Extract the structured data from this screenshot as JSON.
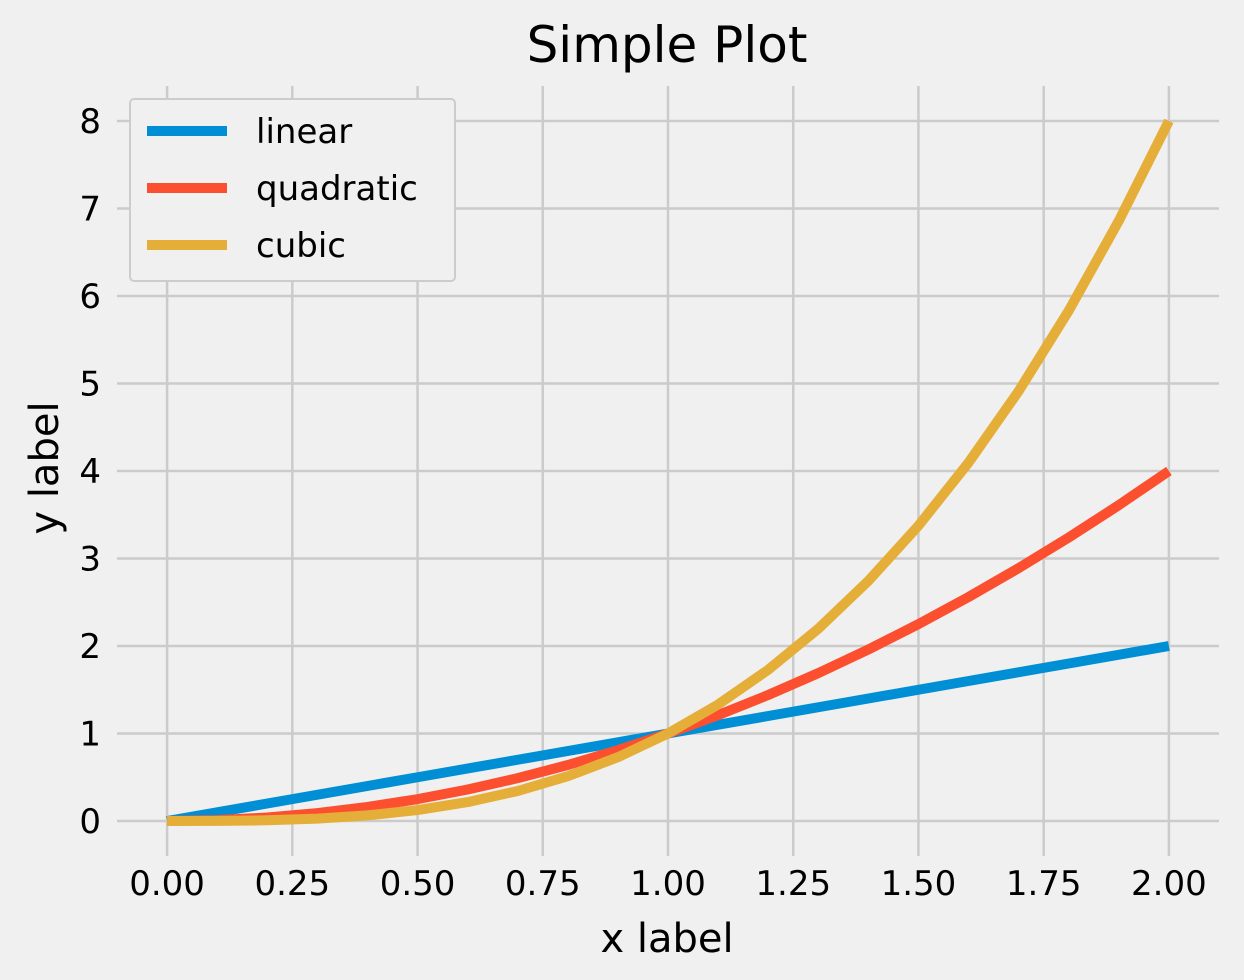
{
  "chart_data": {
    "type": "line",
    "title": "Simple Plot",
    "xlabel": "x label",
    "ylabel": "y label",
    "xlim": [
      -0.1,
      2.1
    ],
    "ylim": [
      -0.4,
      8.4
    ],
    "xticks": [
      0.0,
      0.25,
      0.5,
      0.75,
      1.0,
      1.25,
      1.5,
      1.75,
      2.0
    ],
    "xtick_labels": [
      "0.00",
      "0.25",
      "0.50",
      "0.75",
      "1.00",
      "1.25",
      "1.50",
      "1.75",
      "2.00"
    ],
    "yticks": [
      0,
      1,
      2,
      3,
      4,
      5,
      6,
      7,
      8
    ],
    "ytick_labels": [
      "0",
      "1",
      "2",
      "3",
      "4",
      "5",
      "6",
      "7",
      "8"
    ],
    "grid": true,
    "legend_position": "top-left",
    "x": [
      0.0,
      0.1,
      0.2,
      0.3,
      0.4,
      0.5,
      0.6,
      0.7,
      0.8,
      0.9,
      1.0,
      1.1,
      1.2,
      1.3,
      1.4,
      1.5,
      1.6,
      1.7,
      1.8,
      1.9,
      2.0
    ],
    "series": [
      {
        "name": "linear",
        "color": "#008fd5",
        "values": [
          0.0,
          0.1,
          0.2,
          0.3,
          0.4,
          0.5,
          0.6,
          0.7,
          0.8,
          0.9,
          1.0,
          1.1,
          1.2,
          1.3,
          1.4,
          1.5,
          1.6,
          1.7,
          1.8,
          1.9,
          2.0
        ]
      },
      {
        "name": "quadratic",
        "color": "#fc4f30",
        "values": [
          0.0,
          0.01,
          0.04,
          0.09,
          0.16,
          0.25,
          0.36,
          0.49,
          0.64,
          0.81,
          1.0,
          1.21,
          1.44,
          1.69,
          1.96,
          2.25,
          2.56,
          2.89,
          3.24,
          3.61,
          4.0
        ]
      },
      {
        "name": "cubic",
        "color": "#e5ae38",
        "values": [
          0.0,
          0.001,
          0.008,
          0.027,
          0.064,
          0.125,
          0.216,
          0.343,
          0.512,
          0.729,
          1.0,
          1.331,
          1.728,
          2.197,
          2.744,
          3.375,
          4.096,
          4.913,
          5.832,
          6.859,
          8.0
        ]
      }
    ]
  }
}
